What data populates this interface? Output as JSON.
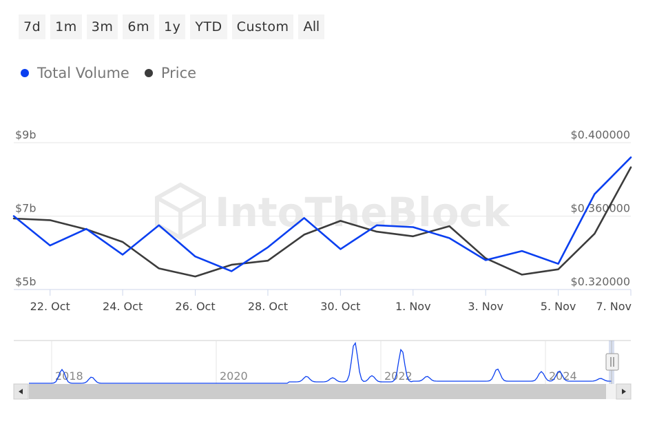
{
  "range_selector": {
    "buttons": [
      "7d",
      "1m",
      "3m",
      "6m",
      "1y",
      "YTD",
      "Custom",
      "All"
    ]
  },
  "legend": {
    "items": [
      {
        "label": "Total Volume",
        "color": "#0a3ff0"
      },
      {
        "label": "Price",
        "color": "#3c3c3c"
      }
    ]
  },
  "watermark": "IntoTheBlock",
  "chart_data": {
    "type": "line",
    "x": [
      "21. Oct",
      "22. Oct",
      "23. Oct",
      "24. Oct",
      "25. Oct",
      "26. Oct",
      "27. Oct",
      "28. Oct",
      "29. Oct",
      "30. Oct",
      "31. Oct",
      "1. Nov",
      "2. Nov",
      "3. Nov",
      "4. Nov",
      "5. Nov",
      "6. Nov",
      "7. Nov"
    ],
    "x_tick_labels": [
      "22. Oct",
      "24. Oct",
      "26. Oct",
      "28. Oct",
      "30. Oct",
      "1. Nov",
      "3. Nov",
      "5. Nov",
      "7. Nov"
    ],
    "y_left": {
      "ticks": [
        "$5b",
        "$7b",
        "$9b"
      ],
      "range": [
        5,
        9
      ],
      "unit": "billion USD"
    },
    "y_right": {
      "ticks": [
        "$0.320000",
        "$0.360000",
        "$0.400000"
      ],
      "range": [
        0.32,
        0.4
      ]
    },
    "series": [
      {
        "name": "Total Volume",
        "axis": "left",
        "color": "#0a3ff0",
        "values": [
          7.0,
          6.2,
          6.65,
          5.95,
          6.75,
          5.9,
          5.5,
          6.15,
          6.95,
          6.1,
          6.75,
          6.7,
          6.4,
          5.8,
          6.05,
          5.7,
          7.6,
          8.6
        ]
      },
      {
        "name": "Price",
        "axis": "right",
        "color": "#3c3c3c",
        "values": [
          0.3587,
          0.3578,
          0.3528,
          0.3459,
          0.3315,
          0.3271,
          0.3335,
          0.3357,
          0.3499,
          0.3574,
          0.3515,
          0.349,
          0.3545,
          0.337,
          0.3281,
          0.331,
          0.3504,
          0.3866
        ]
      }
    ],
    "grid": true,
    "legend_position": "top-left",
    "navigator": {
      "tick_labels": [
        "2018",
        "2020",
        "2022",
        "2024"
      ],
      "series_color": "#0a3ff0"
    }
  }
}
